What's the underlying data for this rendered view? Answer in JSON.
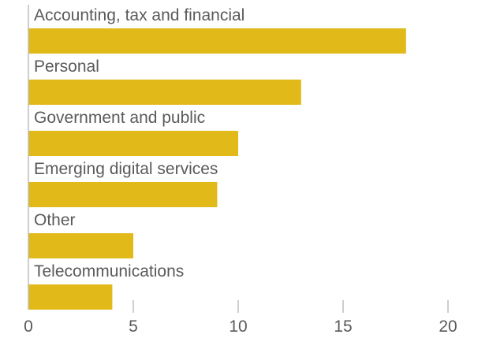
{
  "chart_data": {
    "type": "bar",
    "orientation": "horizontal",
    "title": "",
    "xlabel": "",
    "ylabel": "",
    "categories": [
      "Accounting, tax and financial",
      "Personal",
      "Government and public",
      "Emerging digital services",
      "Other",
      "Telecommunications"
    ],
    "values": [
      18,
      13,
      10,
      9,
      5,
      4
    ],
    "xlim": [
      0,
      20
    ],
    "xticks": [
      0,
      5,
      10,
      15,
      20
    ],
    "tick_labels": [
      "0",
      "5",
      "10",
      "15",
      "20"
    ],
    "bar_color": "#e1b918",
    "grid": false,
    "legend": "none"
  }
}
